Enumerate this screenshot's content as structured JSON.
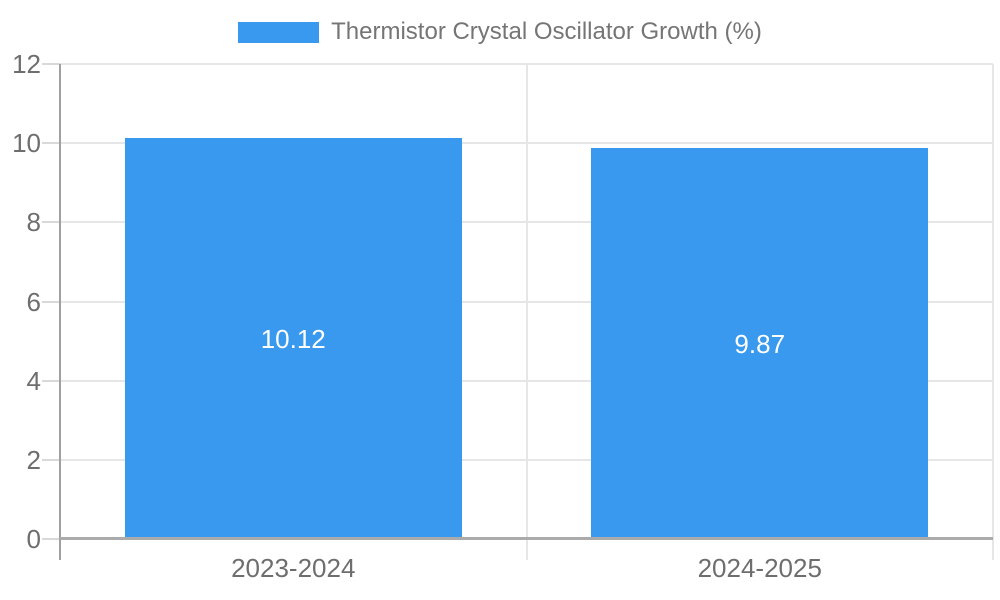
{
  "legend": {
    "label": "Thermistor Crystal Oscillator Growth (%)"
  },
  "chart_data": {
    "type": "bar",
    "title": "",
    "xlabel": "",
    "ylabel": "",
    "categories": [
      "2023-2024",
      "2024-2025"
    ],
    "series": [
      {
        "name": "Thermistor Crystal Oscillator Growth (%)",
        "values": [
          10.12,
          9.87
        ]
      }
    ],
    "value_labels": [
      "10.12",
      "9.87"
    ],
    "ylim": [
      0,
      12
    ],
    "yticks": [
      0,
      2,
      4,
      6,
      8,
      10,
      12
    ],
    "grid": true,
    "legend_position": "top-center",
    "colors": {
      "bar": "#3999ee",
      "tick_text": "#6e6e6e",
      "legend_text": "#757575",
      "gridline": "#e6e6e6",
      "tick_mark": "#d9d9d9",
      "axis_line": "#a0a0a0",
      "baseline": "#ababab",
      "value_label": "#ffffff",
      "background": "#ffffff"
    }
  }
}
